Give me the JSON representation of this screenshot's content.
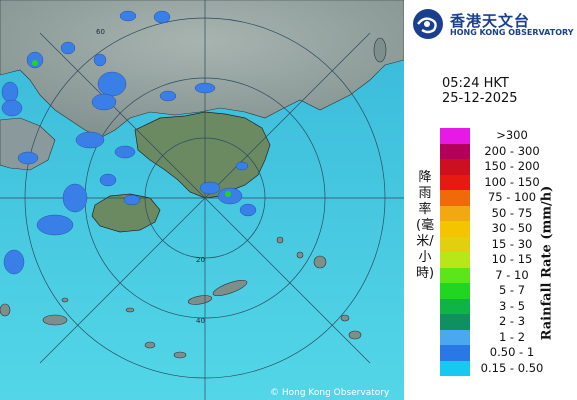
{
  "org": {
    "name_zh": "香港天文台",
    "name_en": "HONG KONG OBSERVATORY"
  },
  "timestamp": {
    "time": "05:24 HKT",
    "date": "25-12-2025"
  },
  "legend": {
    "unit_en": "Rainfall Rate (mm/h)",
    "unit_zh": "降雨率(毫米/小時)",
    "items": [
      {
        "label": ">300",
        "color": "#e619e6"
      },
      {
        "label": "200 - 300",
        "color": "#b3005a"
      },
      {
        "label": "150 - 200",
        "color": "#cc1020"
      },
      {
        "label": "100 - 150",
        "color": "#e61a10"
      },
      {
        "label": "75 - 100",
        "color": "#f06a0a"
      },
      {
        "label": "50 - 75",
        "color": "#f2a810"
      },
      {
        "label": "30 - 50",
        "color": "#f5c400"
      },
      {
        "label": "15 - 30",
        "color": "#e2cf10"
      },
      {
        "label": "10 - 15",
        "color": "#b8e619"
      },
      {
        "label": "7 - 10",
        "color": "#5ce619"
      },
      {
        "label": "5 - 7",
        "color": "#21d621"
      },
      {
        "label": "3 - 5",
        "color": "#10b346"
      },
      {
        "label": "2 - 3",
        "color": "#109060"
      },
      {
        "label": "1 - 2",
        "color": "#4aa8f0"
      },
      {
        "label": "0.50 - 1",
        "color": "#2a78e6"
      },
      {
        "label": "0.15 - 0.50",
        "color": "#19c8f0"
      }
    ]
  },
  "map": {
    "range_labels": [
      "20",
      "40",
      "60"
    ],
    "copyright": "© Hong Kong Observatory",
    "colors": {
      "sea": "#40c8e0",
      "land": "#8a9aa0",
      "island": "#6e8a5e"
    }
  }
}
